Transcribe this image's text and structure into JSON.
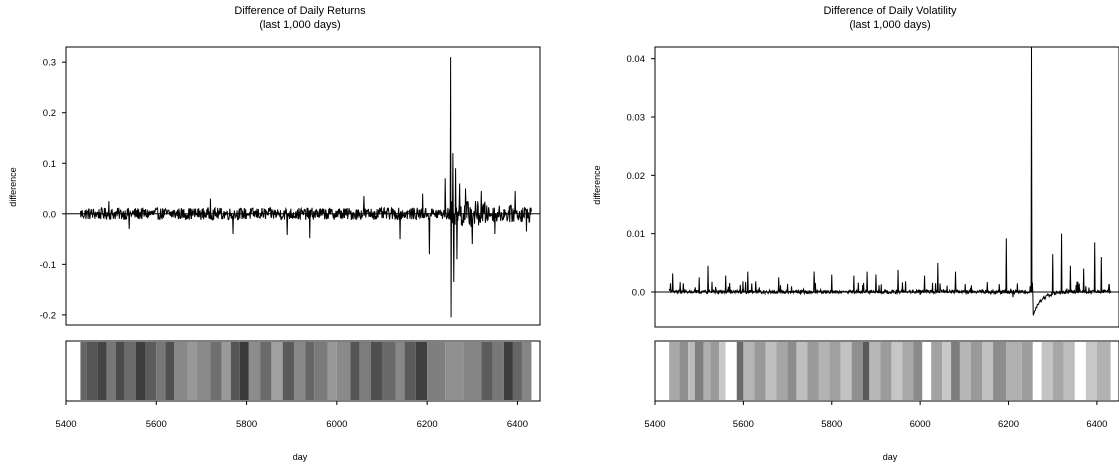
{
  "chart_data": [
    {
      "type": "line",
      "title": "Difference of Daily Returns",
      "subtitle": "(last 1,000 days)",
      "xlabel": "day",
      "ylabel": "difference",
      "xlim": [
        5400,
        6450
      ],
      "ylim": [
        -0.22,
        0.33
      ],
      "x_ticks": [
        "5400",
        "5600",
        "5800",
        "6000",
        "6200",
        "6400"
      ],
      "x_tick_values": [
        5400,
        5600,
        5800,
        6000,
        6200,
        6400
      ],
      "y_ticks": [
        "-0.2",
        "-0.1",
        "0.0",
        "0.1",
        "0.2",
        "0.3"
      ],
      "y_tick_values": [
        -0.2,
        -0.1,
        0.0,
        0.1,
        0.2,
        0.3
      ],
      "series": [
        {
          "x_range": [
            5432,
            6431
          ],
          "baseline": 0.0,
          "noise_amplitude": 0.012,
          "spikes": [
            {
              "x": 5495,
              "y": 0.025
            },
            {
              "x": 5540,
              "y": -0.03
            },
            {
              "x": 5720,
              "y": 0.03
            },
            {
              "x": 5770,
              "y": -0.04
            },
            {
              "x": 5890,
              "y": -0.042
            },
            {
              "x": 5940,
              "y": -0.048
            },
            {
              "x": 6060,
              "y": 0.035
            },
            {
              "x": 6140,
              "y": -0.05
            },
            {
              "x": 6190,
              "y": 0.04
            },
            {
              "x": 6205,
              "y": -0.08
            },
            {
              "x": 6240,
              "y": 0.07
            },
            {
              "x": 6252,
              "y": 0.31
            },
            {
              "x": 6253,
              "y": -0.205
            },
            {
              "x": 6257,
              "y": 0.12
            },
            {
              "x": 6259,
              "y": -0.135
            },
            {
              "x": 6263,
              "y": 0.09
            },
            {
              "x": 6266,
              "y": -0.09
            },
            {
              "x": 6272,
              "y": 0.06
            },
            {
              "x": 6285,
              "y": 0.05
            },
            {
              "x": 6300,
              "y": -0.06
            },
            {
              "x": 6320,
              "y": 0.045
            },
            {
              "x": 6350,
              "y": -0.04
            },
            {
              "x": 6395,
              "y": 0.045
            },
            {
              "x": 6420,
              "y": -0.035
            }
          ]
        }
      ],
      "regime_bar": {
        "x_range": [
          5432,
          6431
        ],
        "segments": [
          {
            "from": 5432,
            "to": 5445,
            "shade": "#666666"
          },
          {
            "from": 5445,
            "to": 5470,
            "shade": "#555555"
          },
          {
            "from": 5470,
            "to": 5490,
            "shade": "#444444"
          },
          {
            "from": 5490,
            "to": 5510,
            "shade": "#777777"
          },
          {
            "from": 5510,
            "to": 5530,
            "shade": "#4a4a4a"
          },
          {
            "from": 5530,
            "to": 5555,
            "shade": "#6a6a6a"
          },
          {
            "from": 5555,
            "to": 5575,
            "shade": "#3d3d3d"
          },
          {
            "from": 5575,
            "to": 5600,
            "shade": "#5c5c5c"
          },
          {
            "from": 5600,
            "to": 5620,
            "shade": "#777777"
          },
          {
            "from": 5620,
            "to": 5640,
            "shade": "#505050"
          },
          {
            "from": 5640,
            "to": 5670,
            "shade": "#888888"
          },
          {
            "from": 5670,
            "to": 5690,
            "shade": "#999999"
          },
          {
            "from": 5690,
            "to": 5720,
            "shade": "#8a8a8a"
          },
          {
            "from": 5720,
            "to": 5745,
            "shade": "#6f6f6f"
          },
          {
            "from": 5745,
            "to": 5765,
            "shade": "#999999"
          },
          {
            "from": 5765,
            "to": 5785,
            "shade": "#555555"
          },
          {
            "from": 5785,
            "to": 5805,
            "shade": "#3a3a3a"
          },
          {
            "from": 5805,
            "to": 5830,
            "shade": "#8c8c8c"
          },
          {
            "from": 5830,
            "to": 5855,
            "shade": "#6a6a6a"
          },
          {
            "from": 5855,
            "to": 5880,
            "shade": "#a0a0a0"
          },
          {
            "from": 5880,
            "to": 5905,
            "shade": "#5a5a5a"
          },
          {
            "from": 5905,
            "to": 5930,
            "shade": "#888888"
          },
          {
            "from": 5930,
            "to": 5950,
            "shade": "#666666"
          },
          {
            "from": 5950,
            "to": 5980,
            "shade": "#7a7a7a"
          },
          {
            "from": 5980,
            "to": 6000,
            "shade": "#999999"
          },
          {
            "from": 6000,
            "to": 6030,
            "shade": "#8a8a8a"
          },
          {
            "from": 6030,
            "to": 6050,
            "shade": "#555555"
          },
          {
            "from": 6050,
            "to": 6075,
            "shade": "#7c7c7c"
          },
          {
            "from": 6075,
            "to": 6100,
            "shade": "#4f4f4f"
          },
          {
            "from": 6100,
            "to": 6130,
            "shade": "#6a6a6a"
          },
          {
            "from": 6130,
            "to": 6150,
            "shade": "#888888"
          },
          {
            "from": 6150,
            "to": 6175,
            "shade": "#5a5a5a"
          },
          {
            "from": 6175,
            "to": 6200,
            "shade": "#3f3f3f"
          },
          {
            "from": 6200,
            "to": 6240,
            "shade": "#7f7f7f"
          },
          {
            "from": 6240,
            "to": 6280,
            "shade": "#909090"
          },
          {
            "from": 6280,
            "to": 6320,
            "shade": "#858585"
          },
          {
            "from": 6320,
            "to": 6345,
            "shade": "#5c5c5c"
          },
          {
            "from": 6345,
            "to": 6370,
            "shade": "#777777"
          },
          {
            "from": 6370,
            "to": 6390,
            "shade": "#3d3d3d"
          },
          {
            "from": 6390,
            "to": 6410,
            "shade": "#666666"
          },
          {
            "from": 6410,
            "to": 6431,
            "shade": "#858585"
          }
        ]
      }
    },
    {
      "type": "line",
      "title": "Difference of Daily Volatility",
      "subtitle": "(last 1,000 days)",
      "xlabel": "day",
      "ylabel": "difference",
      "xlim": [
        5400,
        6450
      ],
      "ylim": [
        -0.006,
        0.042
      ],
      "x_ticks": [
        "5400",
        "5600",
        "5800",
        "6000",
        "6200",
        "6400"
      ],
      "x_tick_values": [
        5400,
        5600,
        5800,
        6000,
        6200,
        6400
      ],
      "y_ticks": [
        "0.0",
        "0.01",
        "0.02",
        "0.03",
        "0.04"
      ],
      "y_tick_values": [
        0.0,
        0.01,
        0.02,
        0.03,
        0.04
      ],
      "series": [
        {
          "x_range": [
            5432,
            6431
          ],
          "baseline": 0.0,
          "noise_amplitude": 0.0006,
          "spikes": [
            {
              "x": 5440,
              "y": 0.0032
            },
            {
              "x": 5500,
              "y": 0.0025
            },
            {
              "x": 5520,
              "y": 0.0045
            },
            {
              "x": 5560,
              "y": 0.0028
            },
            {
              "x": 5610,
              "y": 0.0035
            },
            {
              "x": 5680,
              "y": 0.0025
            },
            {
              "x": 5760,
              "y": 0.0035
            },
            {
              "x": 5800,
              "y": 0.003
            },
            {
              "x": 5850,
              "y": 0.0028
            },
            {
              "x": 5880,
              "y": 0.0035
            },
            {
              "x": 5900,
              "y": 0.003
            },
            {
              "x": 5950,
              "y": 0.0038
            },
            {
              "x": 6010,
              "y": 0.0028
            },
            {
              "x": 6040,
              "y": 0.005
            },
            {
              "x": 6080,
              "y": 0.0035
            },
            {
              "x": 6195,
              "y": 0.0092
            },
            {
              "x": 6252,
              "y": 0.042
            },
            {
              "x": 6256,
              "y": -0.004
            },
            {
              "x": 6300,
              "y": 0.0065
            },
            {
              "x": 6320,
              "y": 0.01
            },
            {
              "x": 6340,
              "y": 0.0045
            },
            {
              "x": 6370,
              "y": 0.004
            },
            {
              "x": 6395,
              "y": 0.0085
            },
            {
              "x": 6410,
              "y": 0.006
            }
          ],
          "dips": [
            {
              "x": 6000,
              "y": -0.0005
            },
            {
              "x": 6080,
              "y": -0.0008
            },
            {
              "x": 6210,
              "y": -0.0009
            }
          ]
        }
      ],
      "regime_bar": {
        "x_range": [
          5432,
          6431
        ],
        "segments": [
          {
            "from": 5432,
            "to": 5455,
            "shade": "#a8a8a8"
          },
          {
            "from": 5455,
            "to": 5475,
            "shade": "#8e8e8e"
          },
          {
            "from": 5475,
            "to": 5490,
            "shade": "#bbbbbb"
          },
          {
            "from": 5490,
            "to": 5510,
            "shade": "#7f7f7f"
          },
          {
            "from": 5510,
            "to": 5525,
            "shade": "#b0b0b0"
          },
          {
            "from": 5525,
            "to": 5545,
            "shade": "#9a9a9a"
          },
          {
            "from": 5545,
            "to": 5560,
            "shade": "#c8c8c8"
          },
          {
            "from": 5560,
            "to": 5585,
            "shade": "#ffffff"
          },
          {
            "from": 5585,
            "to": 5600,
            "shade": "#6a6a6a"
          },
          {
            "from": 5600,
            "to": 5625,
            "shade": "#b5b5b5"
          },
          {
            "from": 5625,
            "to": 5650,
            "shade": "#999999"
          },
          {
            "from": 5650,
            "to": 5675,
            "shade": "#c0c0c0"
          },
          {
            "from": 5675,
            "to": 5700,
            "shade": "#a5a5a5"
          },
          {
            "from": 5700,
            "to": 5720,
            "shade": "#8c8c8c"
          },
          {
            "from": 5720,
            "to": 5745,
            "shade": "#bfbfbf"
          },
          {
            "from": 5745,
            "to": 5770,
            "shade": "#9a9a9a"
          },
          {
            "from": 5770,
            "to": 5795,
            "shade": "#b3b3b3"
          },
          {
            "from": 5795,
            "to": 5820,
            "shade": "#a0a0a0"
          },
          {
            "from": 5820,
            "to": 5845,
            "shade": "#c2c2c2"
          },
          {
            "from": 5845,
            "to": 5870,
            "shade": "#8f8f8f"
          },
          {
            "from": 5870,
            "to": 5885,
            "shade": "#5a5a5a"
          },
          {
            "from": 5885,
            "to": 5910,
            "shade": "#b8b8b8"
          },
          {
            "from": 5910,
            "to": 5935,
            "shade": "#9c9c9c"
          },
          {
            "from": 5935,
            "to": 5960,
            "shade": "#c6c6c6"
          },
          {
            "from": 5960,
            "to": 5985,
            "shade": "#a8a8a8"
          },
          {
            "from": 5985,
            "to": 6005,
            "shade": "#8a8a8a"
          },
          {
            "from": 6005,
            "to": 6025,
            "shade": "#ffffff"
          },
          {
            "from": 6025,
            "to": 6050,
            "shade": "#a3a3a3"
          },
          {
            "from": 6050,
            "to": 6070,
            "shade": "#c8c8c8"
          },
          {
            "from": 6070,
            "to": 6090,
            "shade": "#7c7c7c"
          },
          {
            "from": 6090,
            "to": 6115,
            "shade": "#b6b6b6"
          },
          {
            "from": 6115,
            "to": 6140,
            "shade": "#999999"
          },
          {
            "from": 6140,
            "to": 6165,
            "shade": "#c1c1c1"
          },
          {
            "from": 6165,
            "to": 6195,
            "shade": "#8d8d8d"
          },
          {
            "from": 6195,
            "to": 6230,
            "shade": "#b0b0b0"
          },
          {
            "from": 6230,
            "to": 6255,
            "shade": "#9e9e9e"
          },
          {
            "from": 6255,
            "to": 6275,
            "shade": "#ffffff"
          },
          {
            "from": 6275,
            "to": 6300,
            "shade": "#c4c4c4"
          },
          {
            "from": 6300,
            "to": 6325,
            "shade": "#a6a6a6"
          },
          {
            "from": 6325,
            "to": 6350,
            "shade": "#bdbdbd"
          },
          {
            "from": 6350,
            "to": 6375,
            "shade": "#ffffff"
          },
          {
            "from": 6375,
            "to": 6400,
            "shade": "#c7c7c7"
          },
          {
            "from": 6400,
            "to": 6431,
            "shade": "#b2b2b2"
          }
        ]
      }
    }
  ]
}
